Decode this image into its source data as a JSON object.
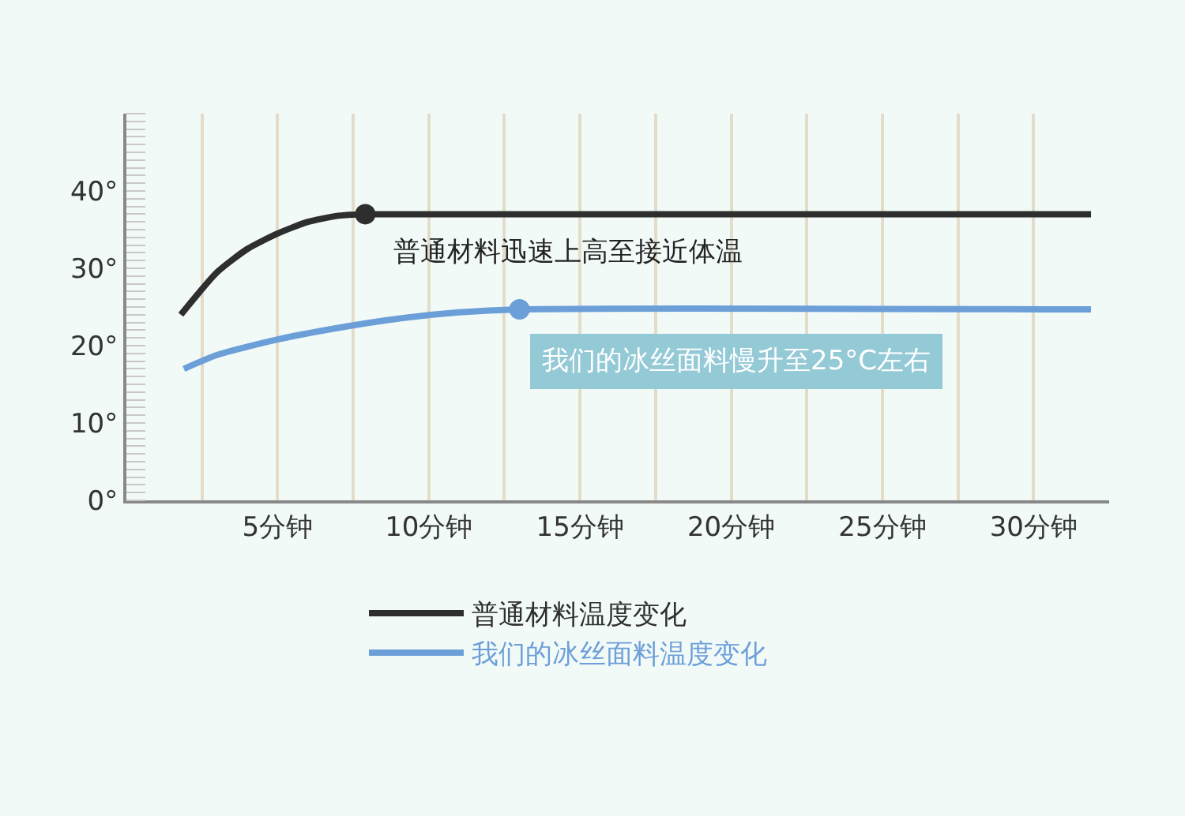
{
  "chart_data": {
    "type": "line",
    "series": [
      {
        "name": "普通材料温度变化",
        "color": "#2e2e2e",
        "x": [
          1.8,
          3,
          4,
          5,
          6,
          7,
          7.9,
          31.9
        ],
        "values": [
          24,
          29.5,
          32.5,
          34.5,
          36,
          36.8,
          37,
          37
        ]
      },
      {
        "name": "我们的冰丝面料温度变化",
        "color": "#6c9fd8",
        "x": [
          1.9,
          3,
          5,
          7,
          9,
          11,
          13,
          31.9
        ],
        "values": [
          17,
          18.8,
          20.8,
          22.3,
          23.5,
          24.3,
          24.7,
          24.7
        ]
      }
    ],
    "annotations": [
      {
        "text": "普通材料迅速上高至接近体温",
        "x": 7.9,
        "y": 37
      },
      {
        "text": "我们的冰丝面料慢升至25°C左右",
        "x": 13,
        "y": 24.7
      }
    ],
    "xlim": [
      0,
      32.5
    ],
    "xticks": [
      {
        "value": 2.5,
        "label": null
      },
      {
        "value": 5,
        "label": "5分钟"
      },
      {
        "value": 7.5,
        "label": null
      },
      {
        "value": 10,
        "label": "10分钟"
      },
      {
        "value": 12.5,
        "label": null
      },
      {
        "value": 15,
        "label": "15分钟"
      },
      {
        "value": 17.5,
        "label": null
      },
      {
        "value": 20,
        "label": "20分钟"
      },
      {
        "value": 22.5,
        "label": null
      },
      {
        "value": 25,
        "label": "25分钟"
      },
      {
        "value": 27.5,
        "label": null
      },
      {
        "value": 30,
        "label": "30分钟"
      }
    ],
    "ylim": [
      0,
      50
    ],
    "yticks": [
      {
        "value": 0,
        "label": "0°"
      },
      {
        "value": 10,
        "label": "10°"
      },
      {
        "value": 20,
        "label": "20°"
      },
      {
        "value": 30,
        "label": "30°"
      },
      {
        "value": 40,
        "label": "40°"
      }
    ],
    "grid": "x",
    "legend": "bottom",
    "line_style": "solid"
  }
}
